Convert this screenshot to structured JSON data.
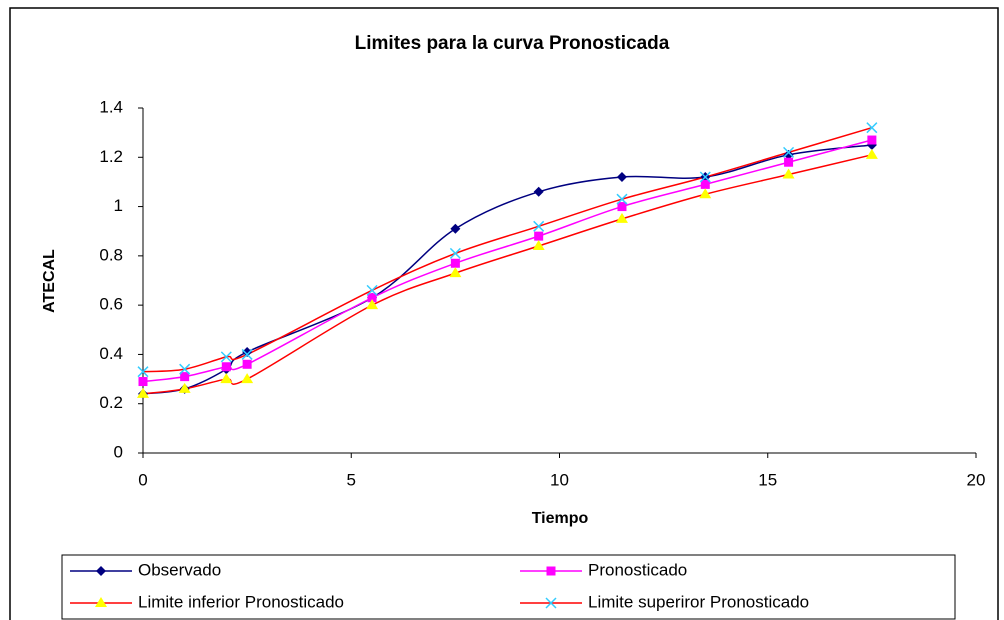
{
  "chart_data": {
    "type": "scatter",
    "title": "Limites para la curva Pronosticada",
    "xlabel": "Tiempo",
    "ylabel": "ATECAL",
    "x": [
      0,
      1,
      2,
      2.5,
      5.5,
      7.5,
      9.5,
      11.5,
      13.5,
      15.5,
      17.5
    ],
    "series": [
      {
        "name": "Observado",
        "color": "#000080",
        "marker": "diamond",
        "marker_color": "#000080",
        "values": [
          0.24,
          0.26,
          0.34,
          0.41,
          0.63,
          0.91,
          1.06,
          1.12,
          1.12,
          1.21,
          1.25
        ]
      },
      {
        "name": "Pronosticado",
        "color": "#ff00ff",
        "marker": "square",
        "marker_color": "#ff00ff",
        "values": [
          0.29,
          0.31,
          0.35,
          0.36,
          0.63,
          0.77,
          0.88,
          1.0,
          1.09,
          1.18,
          1.27
        ]
      },
      {
        "name": "Limite inferior Pronosticado",
        "color": "#ff0000",
        "marker": "triangle",
        "marker_color": "#ffff00",
        "values": [
          0.24,
          0.26,
          0.3,
          0.3,
          0.6,
          0.73,
          0.84,
          0.95,
          1.05,
          1.13,
          1.21
        ]
      },
      {
        "name": "Limite superiror Pronosticado",
        "color": "#ff0000",
        "marker": "x",
        "marker_color": "#33ccff",
        "values": [
          0.33,
          0.34,
          0.39,
          0.4,
          0.66,
          0.81,
          0.92,
          1.03,
          1.12,
          1.22,
          1.32
        ]
      }
    ],
    "xlim": [
      0,
      20
    ],
    "xticks": [
      0,
      5,
      10,
      15,
      20
    ],
    "ylim": [
      0,
      1.4
    ],
    "yticks": [
      0,
      0.2,
      0.4,
      0.6,
      0.8,
      1,
      1.2,
      1.4
    ],
    "grid": false,
    "smooth": true,
    "legend": "bottom"
  }
}
